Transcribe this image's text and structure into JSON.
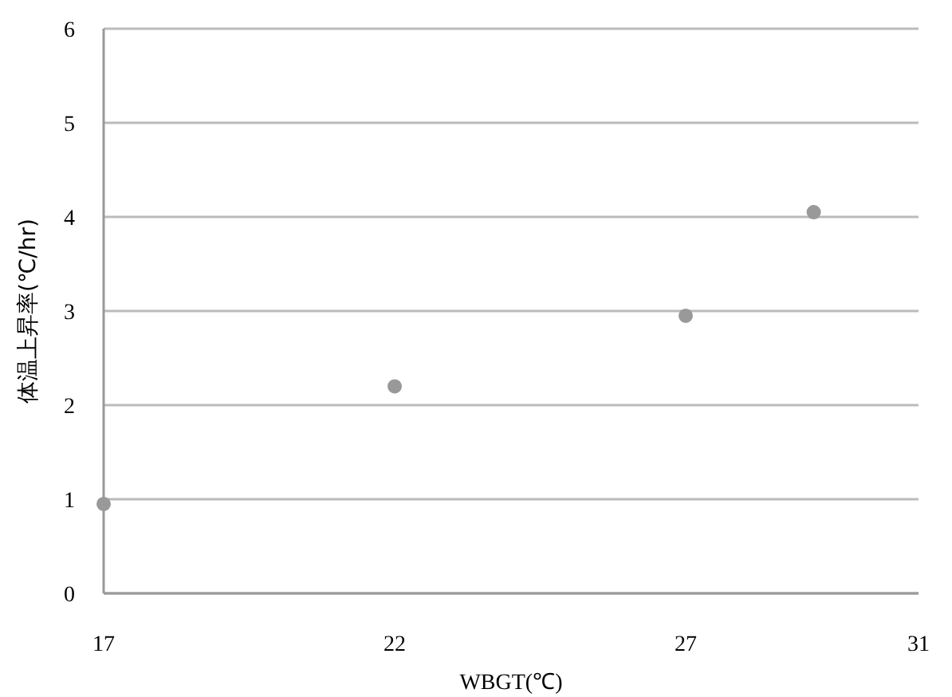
{
  "chart_data": {
    "type": "scatter",
    "xlabel": "WBGT(℃)",
    "ylabel": "体温上昇率(℃/hr)",
    "x": [
      17,
      22,
      27,
      29.2
    ],
    "series": [
      {
        "color": "#999999",
        "values": [
          0.95,
          2.2,
          2.95,
          4.05
        ]
      }
    ],
    "xlim": [
      17,
      31
    ],
    "xticks": [
      17,
      22,
      27,
      31
    ],
    "ylim": [
      0,
      6
    ],
    "yticks": [
      0,
      1,
      2,
      3,
      4,
      5,
      6
    ],
    "grid": "y",
    "marker": "circle"
  }
}
